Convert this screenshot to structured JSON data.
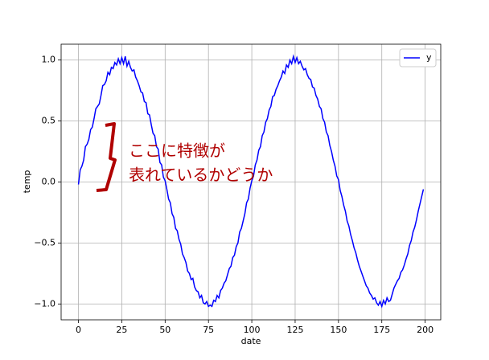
{
  "chart_data": {
    "type": "line",
    "xlabel": "date",
    "ylabel": "temp",
    "xlim": [
      -10,
      209
    ],
    "ylim": [
      -1.13,
      1.13
    ],
    "xticks": [
      0,
      25,
      50,
      75,
      100,
      125,
      150,
      175,
      200
    ],
    "yticks": [
      {
        "value": -1.0,
        "label": "−1.0"
      },
      {
        "value": -0.5,
        "label": "−0.5"
      },
      {
        "value": 0.0,
        "label": "0.0"
      },
      {
        "value": 0.5,
        "label": "0.5"
      },
      {
        "value": 1.0,
        "label": "1.0"
      }
    ],
    "grid": true,
    "legend": "upper right",
    "annotation": [
      "ここに特徴が",
      "表れているかどうか"
    ],
    "x": [
      0,
      1,
      2,
      3,
      4,
      5,
      6,
      7,
      8,
      9,
      10,
      11,
      12,
      13,
      14,
      15,
      16,
      17,
      18,
      19,
      20,
      21,
      22,
      23,
      24,
      25,
      26,
      27,
      28,
      29,
      30,
      31,
      32,
      33,
      34,
      35,
      36,
      37,
      38,
      39,
      40,
      41,
      42,
      43,
      44,
      45,
      46,
      47,
      48,
      49,
      50,
      51,
      52,
      53,
      54,
      55,
      56,
      57,
      58,
      59,
      60,
      61,
      62,
      63,
      64,
      65,
      66,
      67,
      68,
      69,
      70,
      71,
      72,
      73,
      74,
      75,
      76,
      77,
      78,
      79,
      80,
      81,
      82,
      83,
      84,
      85,
      86,
      87,
      88,
      89,
      90,
      91,
      92,
      93,
      94,
      95,
      96,
      97,
      98,
      99,
      100,
      101,
      102,
      103,
      104,
      105,
      106,
      107,
      108,
      109,
      110,
      111,
      112,
      113,
      114,
      115,
      116,
      117,
      118,
      119,
      120,
      121,
      122,
      123,
      124,
      125,
      126,
      127,
      128,
      129,
      130,
      131,
      132,
      133,
      134,
      135,
      136,
      137,
      138,
      139,
      140,
      141,
      142,
      143,
      144,
      145,
      146,
      147,
      148,
      149,
      150,
      151,
      152,
      153,
      154,
      155,
      156,
      157,
      158,
      159,
      160,
      161,
      162,
      163,
      164,
      165,
      166,
      167,
      168,
      169,
      170,
      171,
      172,
      173,
      174,
      175,
      176,
      177,
      178,
      179,
      180,
      181,
      182,
      183,
      184,
      185,
      186,
      187,
      188,
      189,
      190,
      191,
      192,
      193,
      194,
      195,
      196,
      197,
      198,
      199
    ],
    "series": [
      {
        "name": "y",
        "color": "#0000ff",
        "values": [
          -0.02,
          0.1,
          0.13,
          0.18,
          0.29,
          0.31,
          0.35,
          0.43,
          0.45,
          0.52,
          0.6,
          0.62,
          0.64,
          0.71,
          0.79,
          0.8,
          0.83,
          0.9,
          0.88,
          0.94,
          0.93,
          0.98,
          0.96,
          1.01,
          0.97,
          1.02,
          0.97,
          1.03,
          0.95,
          0.99,
          0.94,
          0.91,
          0.92,
          0.86,
          0.83,
          0.79,
          0.74,
          0.73,
          0.66,
          0.65,
          0.56,
          0.55,
          0.47,
          0.4,
          0.38,
          0.29,
          0.27,
          0.16,
          0.14,
          0.04,
          0.01,
          -0.06,
          -0.14,
          -0.17,
          -0.26,
          -0.29,
          -0.38,
          -0.4,
          -0.47,
          -0.51,
          -0.59,
          -0.62,
          -0.66,
          -0.73,
          -0.75,
          -0.8,
          -0.79,
          -0.86,
          -0.89,
          -0.9,
          -0.95,
          -0.93,
          -0.99,
          -1.0,
          -0.98,
          -1.02,
          -1.01,
          -1.02,
          -0.97,
          -0.98,
          -0.93,
          -0.95,
          -0.89,
          -0.87,
          -0.83,
          -0.81,
          -0.76,
          -0.71,
          -0.69,
          -0.62,
          -0.6,
          -0.53,
          -0.5,
          -0.41,
          -0.38,
          -0.32,
          -0.26,
          -0.17,
          -0.14,
          -0.05,
          0.01,
          0.05,
          0.14,
          0.18,
          0.26,
          0.29,
          0.38,
          0.41,
          0.49,
          0.52,
          0.59,
          0.62,
          0.7,
          0.71,
          0.76,
          0.79,
          0.83,
          0.86,
          0.91,
          0.89,
          0.96,
          0.94,
          1.0,
          0.97,
          1.03,
          0.98,
          1.02,
          0.97,
          0.99,
          0.95,
          0.92,
          0.93,
          0.88,
          0.85,
          0.84,
          0.78,
          0.77,
          0.71,
          0.68,
          0.62,
          0.6,
          0.52,
          0.49,
          0.41,
          0.38,
          0.3,
          0.25,
          0.18,
          0.13,
          0.05,
          0.02,
          -0.07,
          -0.12,
          -0.19,
          -0.24,
          -0.32,
          -0.36,
          -0.43,
          -0.48,
          -0.54,
          -0.58,
          -0.64,
          -0.69,
          -0.73,
          -0.77,
          -0.81,
          -0.85,
          -0.87,
          -0.91,
          -0.93,
          -0.96,
          -0.95,
          -0.99,
          -1.01,
          -0.98,
          -1.02,
          -0.97,
          -1.0,
          -0.95,
          -0.98,
          -0.97,
          -0.92,
          -0.87,
          -0.84,
          -0.81,
          -0.79,
          -0.74,
          -0.72,
          -0.68,
          -0.63,
          -0.59,
          -0.52,
          -0.48,
          -0.41,
          -0.37,
          -0.31,
          -0.24,
          -0.18,
          -0.12,
          -0.06
        ]
      }
    ]
  }
}
